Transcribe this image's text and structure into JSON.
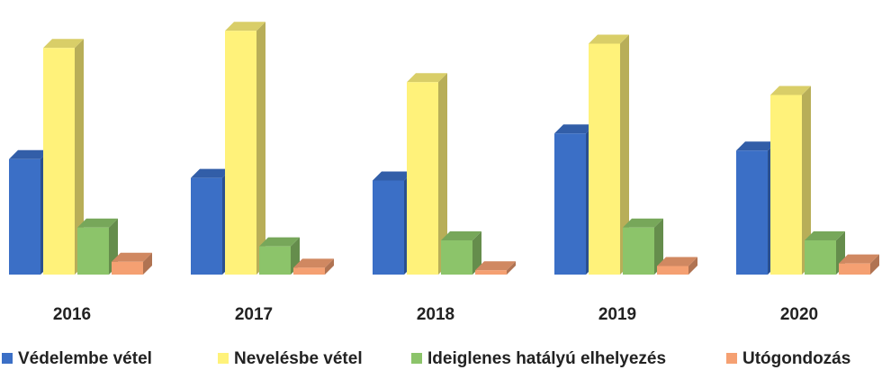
{
  "chart_data": {
    "type": "bar3d",
    "categories": [
      "2016",
      "2017",
      "2018",
      "2019",
      "2020"
    ],
    "ylim": [
      0,
      300
    ],
    "series": [
      {
        "name": "Védelembe vétel",
        "color": "#3b6fc6",
        "values": [
          135,
          113,
          110,
          165,
          145
        ]
      },
      {
        "name": "Nevelésbe vétel",
        "color": "#fff27a",
        "values": [
          265,
          285,
          225,
          270,
          210
        ]
      },
      {
        "name": "Ideiglenes hatályú elhelyezés",
        "color": "#8cc46a",
        "values": [
          55,
          33,
          40,
          55,
          40
        ]
      },
      {
        "name": "Utógondozás",
        "color": "#f5a072",
        "values": [
          15,
          8,
          5,
          10,
          13
        ]
      }
    ]
  }
}
